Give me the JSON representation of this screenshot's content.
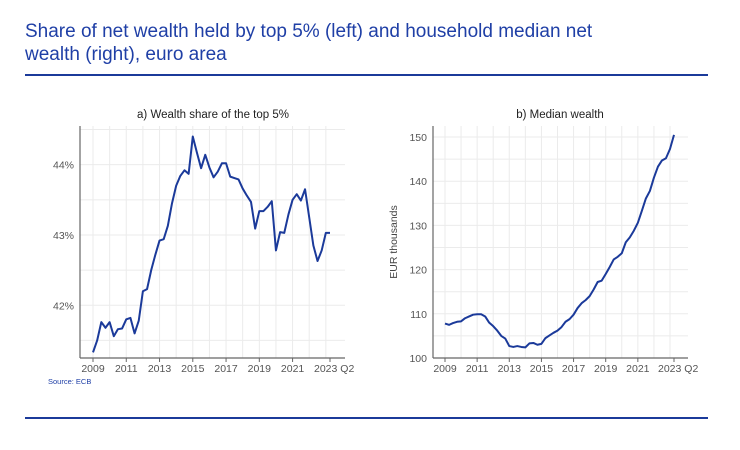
{
  "title": "Share of net wealth held by top 5% (left) and household median net wealth (right), euro area",
  "source": "Source: ECB",
  "colors": {
    "title": "#1f3fa6",
    "line": "#1b3a9a",
    "rule": "#1b3a9a",
    "grid": "#ebebeb",
    "axis": "#666666"
  },
  "chart_data": [
    {
      "type": "line",
      "title": "a) Wealth share of the top 5%",
      "xlabel": "",
      "ylabel": "",
      "x_start": "2009Q1",
      "x_end": "2023Q2",
      "frequency": "quarterly",
      "xticks": [
        "2009",
        "2011",
        "2013",
        "2015",
        "2017",
        "2019",
        "2021",
        "2023 Q2"
      ],
      "yticks": [
        "42%",
        "43%",
        "44%"
      ],
      "ytick_values": [
        42,
        43,
        44
      ],
      "ylim": [
        41.25,
        44.55
      ],
      "grid": true,
      "values": [
        41.33,
        41.5,
        41.76,
        41.68,
        41.76,
        41.56,
        41.66,
        41.67,
        41.8,
        41.82,
        41.6,
        41.78,
        42.2,
        42.23,
        42.5,
        42.72,
        42.92,
        42.94,
        43.13,
        43.45,
        43.7,
        43.84,
        43.92,
        43.87,
        44.4,
        44.17,
        43.95,
        44.14,
        43.96,
        43.82,
        43.9,
        44.02,
        44.02,
        43.83,
        43.81,
        43.79,
        43.66,
        43.56,
        43.47,
        43.09,
        43.34,
        43.34,
        43.4,
        43.48,
        42.78,
        43.04,
        43.03,
        43.29,
        43.5,
        43.58,
        43.49,
        43.65,
        43.25,
        42.85,
        42.63,
        42.78,
        43.03,
        43.03
      ]
    },
    {
      "type": "line",
      "title": "b) Median wealth",
      "xlabel": "",
      "ylabel": "EUR thousands",
      "x_start": "2009Q1",
      "x_end": "2023Q2",
      "frequency": "quarterly",
      "xticks": [
        "2009",
        "2011",
        "2013",
        "2015",
        "2017",
        "2019",
        "2021",
        "2023 Q2"
      ],
      "yticks": [
        "100",
        "110",
        "120",
        "130",
        "140",
        "150"
      ],
      "ytick_values": [
        100,
        110,
        120,
        130,
        140,
        150
      ],
      "ylim": [
        100,
        152.5
      ],
      "grid": true,
      "values": [
        107.8,
        107.5,
        107.9,
        108.2,
        108.3,
        109.0,
        109.4,
        109.8,
        109.9,
        109.9,
        109.4,
        108.0,
        107.2,
        106.2,
        105.0,
        104.4,
        102.7,
        102.5,
        102.7,
        102.5,
        102.4,
        103.3,
        103.4,
        103.0,
        103.2,
        104.5,
        105.1,
        105.7,
        106.2,
        107.0,
        108.2,
        108.8,
        109.8,
        111.3,
        112.4,
        113.1,
        114.0,
        115.5,
        117.2,
        117.5,
        119.0,
        120.6,
        122.3,
        122.9,
        123.7,
        126.2,
        127.3,
        128.8,
        130.6,
        133.3,
        136.1,
        137.8,
        140.8,
        143.3,
        144.7,
        145.2,
        147.3,
        150.5
      ]
    }
  ]
}
